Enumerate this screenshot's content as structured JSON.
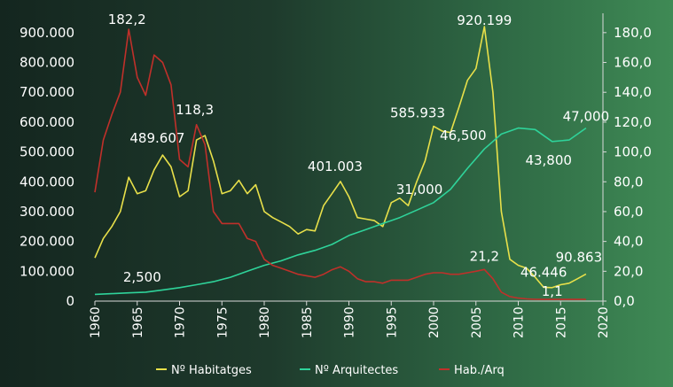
{
  "chart_data": {
    "type": "line",
    "title": "",
    "xlabel": "",
    "ylabel": "",
    "xlim": [
      1960,
      2020
    ],
    "ylim_left": [
      0,
      950000
    ],
    "ylim_right": [
      0,
      190
    ],
    "x_ticks": [
      "1960",
      "1965",
      "1970",
      "1975",
      "1980",
      "1985",
      "1990",
      "1995",
      "2000",
      "2005",
      "2010",
      "2015",
      "2020"
    ],
    "y_ticks_left": [
      "0",
      "100.000",
      "200.000",
      "300.000",
      "400.000",
      "500.000",
      "600.000",
      "700.000",
      "800.000",
      "900.000"
    ],
    "y_ticks_right": [
      "0,0",
      "20,0",
      "40,0",
      "60,0",
      "80,0",
      "100,0",
      "120,0",
      "140,0",
      "160,0",
      "180,0"
    ],
    "grid": false,
    "legend_position": "bottom",
    "series": [
      {
        "name": "Nº Habitatges",
        "axis": "left",
        "color": "#e8e04a",
        "points": [
          [
            1960,
            145000
          ],
          [
            1961,
            210000
          ],
          [
            1962,
            250000
          ],
          [
            1963,
            300000
          ],
          [
            1964,
            415000
          ],
          [
            1965,
            360000
          ],
          [
            1966,
            370000
          ],
          [
            1967,
            440000
          ],
          [
            1968,
            489607
          ],
          [
            1969,
            450000
          ],
          [
            1970,
            350000
          ],
          [
            1971,
            370000
          ],
          [
            1972,
            540000
          ],
          [
            1973,
            555000
          ],
          [
            1974,
            470000
          ],
          [
            1975,
            360000
          ],
          [
            1976,
            370000
          ],
          [
            1977,
            405000
          ],
          [
            1978,
            360000
          ],
          [
            1979,
            390000
          ],
          [
            1980,
            300000
          ],
          [
            1981,
            280000
          ],
          [
            1982,
            265000
          ],
          [
            1983,
            250000
          ],
          [
            1984,
            225000
          ],
          [
            1985,
            240000
          ],
          [
            1986,
            235000
          ],
          [
            1987,
            320000
          ],
          [
            1988,
            360000
          ],
          [
            1989,
            401003
          ],
          [
            1990,
            350000
          ],
          [
            1991,
            280000
          ],
          [
            1992,
            275000
          ],
          [
            1993,
            270000
          ],
          [
            1994,
            250000
          ],
          [
            1995,
            330000
          ],
          [
            1996,
            345000
          ],
          [
            1997,
            320000
          ],
          [
            1998,
            400000
          ],
          [
            1999,
            470000
          ],
          [
            2000,
            585933
          ],
          [
            2001,
            570000
          ],
          [
            2002,
            565000
          ],
          [
            2003,
            650000
          ],
          [
            2004,
            740000
          ],
          [
            2005,
            780000
          ],
          [
            2006,
            920199
          ],
          [
            2007,
            700000
          ],
          [
            2008,
            300000
          ],
          [
            2009,
            140000
          ],
          [
            2010,
            120000
          ],
          [
            2011,
            110000
          ],
          [
            2012,
            80000
          ],
          [
            2013,
            46446
          ],
          [
            2014,
            45000
          ],
          [
            2015,
            55000
          ],
          [
            2016,
            60000
          ],
          [
            2017,
            75000
          ],
          [
            2018,
            90863
          ]
        ]
      },
      {
        "name": "Nº Arquitectes",
        "axis": "right",
        "color": "#2fd39a",
        "points": [
          [
            1960,
            4.5
          ],
          [
            1962,
            5.0
          ],
          [
            1964,
            5.5
          ],
          [
            1966,
            6.0
          ],
          [
            1968,
            7.5
          ],
          [
            1970,
            9.0
          ],
          [
            1972,
            11.0
          ],
          [
            1974,
            13.0
          ],
          [
            1976,
            16.0
          ],
          [
            1978,
            20.0
          ],
          [
            1980,
            24.0
          ],
          [
            1982,
            27.0
          ],
          [
            1984,
            31.0
          ],
          [
            1986,
            34.0
          ],
          [
            1988,
            38.0
          ],
          [
            1990,
            44.0
          ],
          [
            1992,
            48.0
          ],
          [
            1994,
            52.0
          ],
          [
            1996,
            56.0
          ],
          [
            1998,
            61.0
          ],
          [
            2000,
            66.0
          ],
          [
            2002,
            75.0
          ],
          [
            2004,
            89.0
          ],
          [
            2006,
            102.0
          ],
          [
            2008,
            112.0
          ],
          [
            2010,
            116.0
          ],
          [
            2012,
            115.0
          ],
          [
            2014,
            107.0
          ],
          [
            2016,
            108.0
          ],
          [
            2018,
            116.0
          ]
        ]
      },
      {
        "name": "Hab./Arq",
        "axis": "right",
        "color": "#c0302a",
        "points": [
          [
            1960,
            73
          ],
          [
            1961,
            108
          ],
          [
            1962,
            125
          ],
          [
            1963,
            140
          ],
          [
            1964,
            182.2
          ],
          [
            1965,
            150
          ],
          [
            1966,
            138
          ],
          [
            1967,
            165
          ],
          [
            1968,
            160
          ],
          [
            1969,
            145
          ],
          [
            1970,
            95
          ],
          [
            1971,
            90
          ],
          [
            1972,
            118.3
          ],
          [
            1973,
            105
          ],
          [
            1974,
            60
          ],
          [
            1975,
            52
          ],
          [
            1976,
            52
          ],
          [
            1977,
            52
          ],
          [
            1978,
            42
          ],
          [
            1979,
            40
          ],
          [
            1980,
            28
          ],
          [
            1981,
            24
          ],
          [
            1982,
            22
          ],
          [
            1983,
            20
          ],
          [
            1984,
            18
          ],
          [
            1985,
            17
          ],
          [
            1986,
            16
          ],
          [
            1987,
            18
          ],
          [
            1988,
            21
          ],
          [
            1989,
            23
          ],
          [
            1990,
            20
          ],
          [
            1991,
            15
          ],
          [
            1992,
            13
          ],
          [
            1993,
            13
          ],
          [
            1994,
            12
          ],
          [
            1995,
            14
          ],
          [
            1996,
            14
          ],
          [
            1997,
            14
          ],
          [
            1998,
            16
          ],
          [
            1999,
            18
          ],
          [
            2000,
            19
          ],
          [
            2001,
            19
          ],
          [
            2002,
            18
          ],
          [
            2003,
            18
          ],
          [
            2004,
            19
          ],
          [
            2005,
            20
          ],
          [
            2006,
            21.2
          ],
          [
            2007,
            15
          ],
          [
            2008,
            6
          ],
          [
            2009,
            3
          ],
          [
            2010,
            2
          ],
          [
            2011,
            1.5
          ],
          [
            2012,
            1.2
          ],
          [
            2013,
            1.1
          ],
          [
            2014,
            1.1
          ],
          [
            2015,
            1.1
          ],
          [
            2016,
            1.1
          ],
          [
            2017,
            1.1
          ],
          [
            2018,
            1.1
          ]
        ]
      }
    ],
    "annotations": [
      {
        "text": "182,2",
        "series": "Hab./Arq",
        "x": 1964,
        "y": 182.2
      },
      {
        "text": "118,3",
        "series": "Hab./Arq",
        "x": 1972,
        "y": 118.3
      },
      {
        "text": "21,2",
        "series": "Hab./Arq",
        "x": 2006,
        "y": 21.2
      },
      {
        "text": "1,1",
        "series": "Hab./Arq",
        "x": 2014,
        "y": 1.1
      },
      {
        "text": "489.607",
        "series": "Nº Habitatges",
        "x": 1968,
        "y": 489607
      },
      {
        "text": "401.003",
        "series": "Nº Habitatges",
        "x": 1989,
        "y": 401003
      },
      {
        "text": "585.933",
        "series": "Nº Habitatges",
        "x": 2000,
        "y": 585933
      },
      {
        "text": "920.199",
        "series": "Nº Habitatges",
        "x": 2006,
        "y": 920199
      },
      {
        "text": "46.446",
        "series": "Nº Habitatges",
        "x": 2013,
        "y": 46446
      },
      {
        "text": "90.863",
        "series": "Nº Habitatges",
        "x": 2018,
        "y": 90863
      },
      {
        "text": "2,500",
        "series": "Nº Arquitectes",
        "x": 1966,
        "y": 6.0
      },
      {
        "text": "31,000",
        "series": "Nº Arquitectes",
        "x": 2000,
        "y": 66.0
      },
      {
        "text": "46,500",
        "series": "Nº Arquitectes",
        "x": 2006,
        "y": 102.0
      },
      {
        "text": "43,800",
        "series": "Nº Arquitectes",
        "x": 2014,
        "y": 107.0
      },
      {
        "text": "47,000",
        "series": "Nº Arquitectes",
        "x": 2018,
        "y": 116.0
      }
    ]
  }
}
